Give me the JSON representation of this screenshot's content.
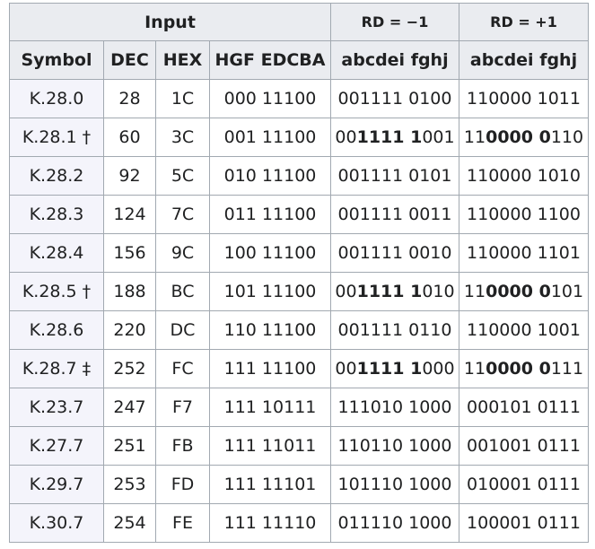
{
  "header": {
    "input": "Input",
    "rd_minus": "RD = −1",
    "rd_plus": "RD = +1",
    "col_symbol": "Symbol",
    "col_dec": "DEC",
    "col_hex": "HEX",
    "col_input_bits": "HGF EDCBA",
    "col_rd_minus_bits": "abcdei fghj",
    "col_rd_plus_bits": "abcdei fghj"
  },
  "rows": [
    {
      "symbol": "K.28.0",
      "dec": "28",
      "hex": "1C",
      "input": "000 11100",
      "rd_minus": [
        {
          "t": "001111 0100",
          "b": false
        }
      ],
      "rd_plus": [
        {
          "t": "110000 1011",
          "b": false
        }
      ]
    },
    {
      "symbol": "K.28.1 †",
      "dec": "60",
      "hex": "3C",
      "input": "001 11100",
      "rd_minus": [
        {
          "t": "00",
          "b": false
        },
        {
          "t": "1111 1",
          "b": true
        },
        {
          "t": "001",
          "b": false
        }
      ],
      "rd_plus": [
        {
          "t": "11",
          "b": false
        },
        {
          "t": "0000 0",
          "b": true
        },
        {
          "t": "110",
          "b": false
        }
      ]
    },
    {
      "symbol": "K.28.2",
      "dec": "92",
      "hex": "5C",
      "input": "010 11100",
      "rd_minus": [
        {
          "t": "001111 0101",
          "b": false
        }
      ],
      "rd_plus": [
        {
          "t": "110000 1010",
          "b": false
        }
      ]
    },
    {
      "symbol": "K.28.3",
      "dec": "124",
      "hex": "7C",
      "input": "011 11100",
      "rd_minus": [
        {
          "t": "001111 0011",
          "b": false
        }
      ],
      "rd_plus": [
        {
          "t": "110000 1100",
          "b": false
        }
      ]
    },
    {
      "symbol": "K.28.4",
      "dec": "156",
      "hex": "9C",
      "input": "100 11100",
      "rd_minus": [
        {
          "t": "001111 0010",
          "b": false
        }
      ],
      "rd_plus": [
        {
          "t": "110000 1101",
          "b": false
        }
      ]
    },
    {
      "symbol": "K.28.5 †",
      "dec": "188",
      "hex": "BC",
      "input": "101 11100",
      "rd_minus": [
        {
          "t": "00",
          "b": false
        },
        {
          "t": "1111 1",
          "b": true
        },
        {
          "t": "010",
          "b": false
        }
      ],
      "rd_plus": [
        {
          "t": "11",
          "b": false
        },
        {
          "t": "0000 0",
          "b": true
        },
        {
          "t": "101",
          "b": false
        }
      ]
    },
    {
      "symbol": "K.28.6",
      "dec": "220",
      "hex": "DC",
      "input": "110 11100",
      "rd_minus": [
        {
          "t": "001111 0110",
          "b": false
        }
      ],
      "rd_plus": [
        {
          "t": "110000 1001",
          "b": false
        }
      ]
    },
    {
      "symbol": "K.28.7 ‡",
      "dec": "252",
      "hex": "FC",
      "input": "111 11100",
      "rd_minus": [
        {
          "t": "00",
          "b": false
        },
        {
          "t": "1111 1",
          "b": true
        },
        {
          "t": "000",
          "b": false
        }
      ],
      "rd_plus": [
        {
          "t": "11",
          "b": false
        },
        {
          "t": "0000 0",
          "b": true
        },
        {
          "t": "111",
          "b": false
        }
      ]
    },
    {
      "symbol": "K.23.7",
      "dec": "247",
      "hex": "F7",
      "input": "111 10111",
      "rd_minus": [
        {
          "t": "111010 1000",
          "b": false
        }
      ],
      "rd_plus": [
        {
          "t": "000101 0111",
          "b": false
        }
      ]
    },
    {
      "symbol": "K.27.7",
      "dec": "251",
      "hex": "FB",
      "input": "111 11011",
      "rd_minus": [
        {
          "t": "110110 1000",
          "b": false
        }
      ],
      "rd_plus": [
        {
          "t": "001001 0111",
          "b": false
        }
      ]
    },
    {
      "symbol": "K.29.7",
      "dec": "253",
      "hex": "FD",
      "input": "111 11101",
      "rd_minus": [
        {
          "t": "101110 1000",
          "b": false
        }
      ],
      "rd_plus": [
        {
          "t": "010001 0111",
          "b": false
        }
      ]
    },
    {
      "symbol": "K.30.7",
      "dec": "254",
      "hex": "FE",
      "input": "111 11110",
      "rd_minus": [
        {
          "t": "011110 1000",
          "b": false
        }
      ],
      "rd_plus": [
        {
          "t": "100001 0111",
          "b": false
        }
      ]
    }
  ]
}
